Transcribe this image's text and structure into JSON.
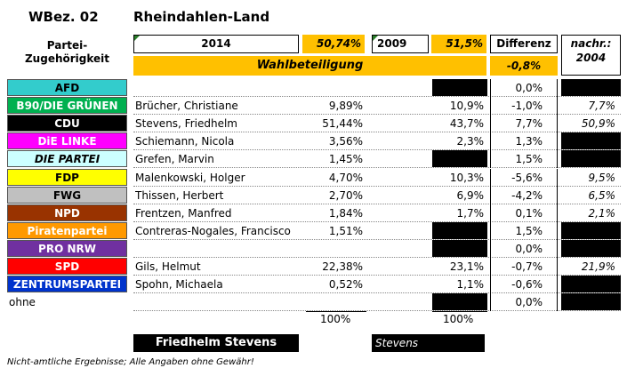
{
  "header": {
    "wbez": "WBez. 02",
    "district": "Rheindahlen-Land",
    "partei_label_1": "Partei-",
    "partei_label_2": "Zugehörigkeit",
    "year_2014": "2014",
    "turnout_2014": "50,74%",
    "year_2009": "2009",
    "turnout_2009": "51,5%",
    "differenz": "Differenz",
    "nachr_1": "nachr.:",
    "nachr_2": "2004",
    "wahlbeteiligung": "Wahlbeteiligung",
    "turnout_diff": "-0,8%"
  },
  "colors": {
    "accent_yellow": "#ffc000",
    "black": "#000000"
  },
  "rows": [
    {
      "party": "AFD",
      "bg": "#33cccc",
      "fg": "#000000",
      "italic": false,
      "candidate": "",
      "pct2014": "",
      "pct2009": "",
      "black2009": true,
      "diff": "0,0%",
      "nachr": "",
      "black2004": true
    },
    {
      "party": "B90/DIE GRÜNEN",
      "bg": "#00b050",
      "fg": "#ffffff",
      "italic": false,
      "candidate": "Brücher, Christiane",
      "pct2014": "9,89%",
      "pct2009": "10,9%",
      "black2009": false,
      "diff": "-1,0%",
      "nachr": "7,7%",
      "black2004": false
    },
    {
      "party": "CDU",
      "bg": "#000000",
      "fg": "#ffffff",
      "italic": false,
      "candidate": "Stevens, Friedhelm",
      "pct2014": "51,44%",
      "pct2009": "43,7%",
      "black2009": false,
      "diff": "7,7%",
      "nachr": "50,9%",
      "black2004": false
    },
    {
      "party": "DiE LINKE",
      "bg": "#ff00ff",
      "fg": "#ffffff",
      "italic": false,
      "candidate": "Schiemann, Nicola",
      "pct2014": "3,56%",
      "pct2009": "2,3%",
      "black2009": false,
      "diff": "1,3%",
      "nachr": "",
      "black2004": true
    },
    {
      "party": "DIE PARTEI",
      "bg": "#ccffff",
      "fg": "#000000",
      "italic": true,
      "candidate": "Grefen, Marvin",
      "pct2014": "1,45%",
      "pct2009": "",
      "black2009": true,
      "diff": "1,5%",
      "nachr": "",
      "black2004": true
    },
    {
      "party": "FDP",
      "bg": "#ffff00",
      "fg": "#000000",
      "italic": false,
      "candidate": "Malenkowski, Holger",
      "pct2014": "4,70%",
      "pct2009": "10,3%",
      "black2009": false,
      "diff": "-5,6%",
      "nachr": "9,5%",
      "black2004": false
    },
    {
      "party": "FWG",
      "bg": "#c0c0c0",
      "fg": "#000000",
      "italic": false,
      "candidate": "Thissen, Herbert",
      "pct2014": "2,70%",
      "pct2009": "6,9%",
      "black2009": false,
      "diff": "-4,2%",
      "nachr": "6,5%",
      "black2004": false
    },
    {
      "party": "NPD",
      "bg": "#993300",
      "fg": "#ffffff",
      "italic": false,
      "candidate": "Frentzen, Manfred",
      "pct2014": "1,84%",
      "pct2009": "1,7%",
      "black2009": false,
      "diff": "0,1%",
      "nachr": "2,1%",
      "black2004": false
    },
    {
      "party": "Piratenpartei",
      "bg": "#ff9900",
      "fg": "#ffffff",
      "italic": false,
      "candidate": "Contreras-Nogales, Francisco",
      "pct2014": "1,51%",
      "pct2009": "",
      "black2009": true,
      "diff": "1,5%",
      "nachr": "",
      "black2004": true
    },
    {
      "party": "PRO NRW",
      "bg": "#7030a0",
      "fg": "#ffffff",
      "italic": false,
      "candidate": "",
      "pct2014": "",
      "pct2009": "",
      "black2009": true,
      "diff": "0,0%",
      "nachr": "",
      "black2004": true
    },
    {
      "party": "SPD",
      "bg": "#ff0000",
      "fg": "#ffffff",
      "italic": false,
      "candidate": "Gils, Helmut",
      "pct2014": "22,38%",
      "pct2009": "23,1%",
      "black2009": false,
      "diff": "-0,7%",
      "nachr": "21,9%",
      "black2004": false
    },
    {
      "party": "ZENTRUMSPARTEI",
      "bg": "#0033cc",
      "fg": "#ffffff",
      "italic": false,
      "candidate": "Spohn, Michaela",
      "pct2014": "0,52%",
      "pct2009": "1,1%",
      "black2009": false,
      "diff": "-0,6%",
      "nachr": "",
      "black2004": true
    },
    {
      "party": "ohne",
      "bg": "",
      "fg": "#000000",
      "italic": false,
      "plain": true,
      "candidate": "",
      "pct2014": "",
      "pct2009": "",
      "black2009": true,
      "diff": "0,0%",
      "nachr": "",
      "black2004": true
    }
  ],
  "totals": {
    "sum2014": "100%",
    "sum2009": "100%"
  },
  "winner": {
    "winner_2014": "Friedhelm Stevens",
    "winner_2009": "Stevens"
  },
  "footer": {
    "disclaimer": "Nicht-amtliche Ergebnisse; Alle Angaben ohne Gewähr!"
  }
}
